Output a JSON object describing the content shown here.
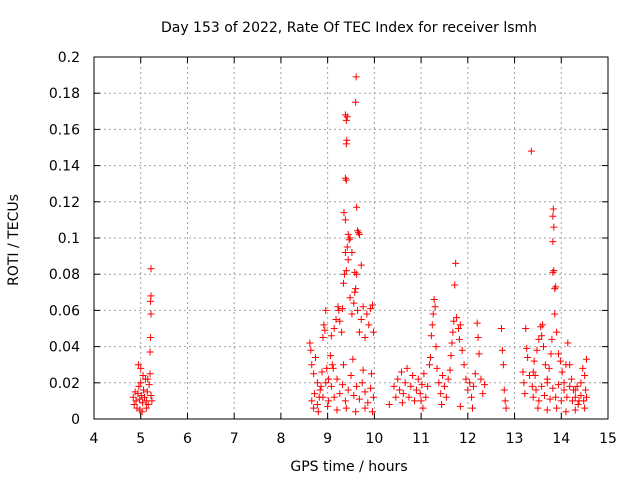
{
  "chart_data": {
    "type": "scatter",
    "title": "Day 153 of 2022, Rate Of TEC Index for receiver lsmh",
    "xlabel": "GPS time / hours",
    "ylabel": "ROTI / TECUs",
    "xlim": [
      4,
      15
    ],
    "ylim": [
      0,
      0.2
    ],
    "xticks": [
      4,
      5,
      6,
      7,
      8,
      9,
      10,
      11,
      12,
      13,
      14,
      15
    ],
    "yticks": [
      0,
      0.02,
      0.04,
      0.06,
      0.08,
      0.1,
      0.12,
      0.14,
      0.16,
      0.18,
      0.2
    ],
    "xtick_labels": [
      "4",
      "5",
      "6",
      "7",
      "8",
      "9",
      "10",
      "11",
      "12",
      "13",
      "14",
      "15"
    ],
    "ytick_labels": [
      "0",
      "0.02",
      "0.04",
      "0.06",
      "0.08",
      "0.1",
      "0.12",
      "0.14",
      "0.16",
      "0.18",
      "0.2"
    ],
    "grid": true,
    "marker": "plus",
    "marker_color": "#ff0000",
    "series": [
      {
        "name": "ROTI",
        "points": [
          [
            4.84,
            0.012
          ],
          [
            4.86,
            0.008
          ],
          [
            4.88,
            0.015
          ],
          [
            4.9,
            0.01
          ],
          [
            4.92,
            0.006
          ],
          [
            4.94,
            0.014
          ],
          [
            4.96,
            0.018
          ],
          [
            4.98,
            0.011
          ],
          [
            5.0,
            0.02
          ],
          [
            5.02,
            0.013
          ],
          [
            5.04,
            0.009
          ],
          [
            5.06,
            0.016
          ],
          [
            5.08,
            0.012
          ],
          [
            5.1,
            0.022
          ],
          [
            5.12,
            0.01
          ],
          [
            5.14,
            0.015
          ],
          [
            5.16,
            0.008
          ],
          [
            5.18,
            0.019
          ],
          [
            5.2,
            0.025
          ],
          [
            5.22,
            0.013
          ],
          [
            5.24,
            0.01
          ],
          [
            4.95,
            0.03
          ],
          [
            5.0,
            0.028
          ],
          [
            5.05,
            0.024
          ],
          [
            5.15,
            0.022
          ],
          [
            5.21,
            0.045
          ],
          [
            5.22,
            0.058
          ],
          [
            5.21,
            0.065
          ],
          [
            5.22,
            0.068
          ],
          [
            5.2,
            0.037
          ],
          [
            5.22,
            0.083
          ],
          [
            4.98,
            0.005
          ],
          [
            5.03,
            0.004
          ],
          [
            5.12,
            0.006
          ],
          [
            8.62,
            0.042
          ],
          [
            8.64,
            0.038
          ],
          [
            8.66,
            0.03
          ],
          [
            8.7,
            0.025
          ],
          [
            8.74,
            0.034
          ],
          [
            8.78,
            0.02
          ],
          [
            8.82,
            0.012
          ],
          [
            8.86,
            0.018
          ],
          [
            8.9,
            0.045
          ],
          [
            8.92,
            0.052
          ],
          [
            8.94,
            0.049
          ],
          [
            8.96,
            0.06
          ],
          [
            8.98,
            0.028
          ],
          [
            9.02,
            0.022
          ],
          [
            9.06,
            0.035
          ],
          [
            9.08,
            0.046
          ],
          [
            9.1,
            0.03
          ],
          [
            9.14,
            0.05
          ],
          [
            9.18,
            0.055
          ],
          [
            9.22,
            0.062
          ],
          [
            9.24,
            0.06
          ],
          [
            9.26,
            0.054
          ],
          [
            9.3,
            0.048
          ],
          [
            9.32,
            0.061
          ],
          [
            9.34,
            0.075
          ],
          [
            9.36,
            0.08
          ],
          [
            9.38,
            0.092
          ],
          [
            9.4,
            0.082
          ],
          [
            9.42,
            0.095
          ],
          [
            9.44,
            0.088
          ],
          [
            9.46,
            0.099
          ],
          [
            9.48,
            0.067
          ],
          [
            9.52,
            0.058
          ],
          [
            9.56,
            0.064
          ],
          [
            9.58,
            0.07
          ],
          [
            9.6,
            0.072
          ],
          [
            9.62,
            0.08
          ],
          [
            9.64,
            0.06
          ],
          [
            9.68,
            0.048
          ],
          [
            9.72,
            0.055
          ],
          [
            9.76,
            0.062
          ],
          [
            9.8,
            0.045
          ],
          [
            9.84,
            0.058
          ],
          [
            9.88,
            0.052
          ],
          [
            9.92,
            0.061
          ],
          [
            9.96,
            0.063
          ],
          [
            9.98,
            0.048
          ],
          [
            9.35,
            0.114
          ],
          [
            9.38,
            0.11
          ],
          [
            9.4,
            0.132
          ],
          [
            9.38,
            0.133
          ],
          [
            9.4,
            0.152
          ],
          [
            9.41,
            0.154
          ],
          [
            9.4,
            0.165
          ],
          [
            9.42,
            0.167
          ],
          [
            9.38,
            0.168
          ],
          [
            9.62,
            0.117
          ],
          [
            9.64,
            0.104
          ],
          [
            9.68,
            0.102
          ],
          [
            9.66,
            0.103
          ],
          [
            9.6,
            0.175
          ],
          [
            9.61,
            0.189
          ],
          [
            9.48,
            0.1
          ],
          [
            9.52,
            0.092
          ],
          [
            9.44,
            0.102
          ],
          [
            9.72,
            0.085
          ],
          [
            9.58,
            0.081
          ],
          [
            8.66,
            0.01
          ],
          [
            8.72,
            0.014
          ],
          [
            8.78,
            0.008
          ],
          [
            8.84,
            0.016
          ],
          [
            8.9,
            0.012
          ],
          [
            8.96,
            0.02
          ],
          [
            9.02,
            0.01
          ],
          [
            9.08,
            0.018
          ],
          [
            9.14,
            0.012
          ],
          [
            9.2,
            0.022
          ],
          [
            9.26,
            0.014
          ],
          [
            9.32,
            0.019
          ],
          [
            9.38,
            0.01
          ],
          [
            9.44,
            0.016
          ],
          [
            9.5,
            0.024
          ],
          [
            9.56,
            0.013
          ],
          [
            9.62,
            0.018
          ],
          [
            9.68,
            0.011
          ],
          [
            9.74,
            0.02
          ],
          [
            9.8,
            0.015
          ],
          [
            9.86,
            0.009
          ],
          [
            9.92,
            0.017
          ],
          [
            9.98,
            0.012
          ],
          [
            8.7,
            0.006
          ],
          [
            8.8,
            0.004
          ],
          [
            9.0,
            0.007
          ],
          [
            9.2,
            0.005
          ],
          [
            9.4,
            0.006
          ],
          [
            9.6,
            0.004
          ],
          [
            9.8,
            0.006
          ],
          [
            9.96,
            0.004
          ],
          [
            8.88,
            0.026
          ],
          [
            9.12,
            0.028
          ],
          [
            9.34,
            0.03
          ],
          [
            9.54,
            0.033
          ],
          [
            9.76,
            0.027
          ],
          [
            9.94,
            0.025
          ],
          [
            10.32,
            0.008
          ],
          [
            10.42,
            0.018
          ],
          [
            10.46,
            0.012
          ],
          [
            10.5,
            0.022
          ],
          [
            10.54,
            0.016
          ],
          [
            10.58,
            0.026
          ],
          [
            10.62,
            0.014
          ],
          [
            10.66,
            0.02
          ],
          [
            10.7,
            0.028
          ],
          [
            10.74,
            0.012
          ],
          [
            10.78,
            0.018
          ],
          [
            10.82,
            0.024
          ],
          [
            10.86,
            0.01
          ],
          [
            10.9,
            0.016
          ],
          [
            10.94,
            0.022
          ],
          [
            10.98,
            0.014
          ],
          [
            11.02,
            0.019
          ],
          [
            11.06,
            0.025
          ],
          [
            11.1,
            0.012
          ],
          [
            11.14,
            0.018
          ],
          [
            11.18,
            0.03
          ],
          [
            11.2,
            0.034
          ],
          [
            11.22,
            0.046
          ],
          [
            11.24,
            0.052
          ],
          [
            11.26,
            0.058
          ],
          [
            11.28,
            0.066
          ],
          [
            11.3,
            0.062
          ],
          [
            11.32,
            0.04
          ],
          [
            11.34,
            0.028
          ],
          [
            11.38,
            0.02
          ],
          [
            11.42,
            0.014
          ],
          [
            11.46,
            0.024
          ],
          [
            11.5,
            0.018
          ],
          [
            11.54,
            0.012
          ],
          [
            11.58,
            0.022
          ],
          [
            11.62,
            0.027
          ],
          [
            11.64,
            0.035
          ],
          [
            11.66,
            0.042
          ],
          [
            11.68,
            0.048
          ],
          [
            11.7,
            0.054
          ],
          [
            11.72,
            0.074
          ],
          [
            11.74,
            0.086
          ],
          [
            11.76,
            0.056
          ],
          [
            11.8,
            0.05
          ],
          [
            11.82,
            0.044
          ],
          [
            11.84,
            0.052
          ],
          [
            11.88,
            0.038
          ],
          [
            11.92,
            0.03
          ],
          [
            11.96,
            0.022
          ],
          [
            12.0,
            0.016
          ],
          [
            12.04,
            0.02
          ],
          [
            12.08,
            0.012
          ],
          [
            12.12,
            0.018
          ],
          [
            12.16,
            0.025
          ],
          [
            12.2,
            0.053
          ],
          [
            12.22,
            0.045
          ],
          [
            12.24,
            0.036
          ],
          [
            12.28,
            0.022
          ],
          [
            12.32,
            0.014
          ],
          [
            12.36,
            0.019
          ],
          [
            11.04,
            0.006
          ],
          [
            11.44,
            0.008
          ],
          [
            11.84,
            0.007
          ],
          [
            12.1,
            0.006
          ],
          [
            10.6,
            0.009
          ],
          [
            11.0,
            0.01
          ],
          [
            12.72,
            0.05
          ],
          [
            12.74,
            0.038
          ],
          [
            12.76,
            0.03
          ],
          [
            12.78,
            0.016
          ],
          [
            12.8,
            0.01
          ],
          [
            12.82,
            0.006
          ],
          [
            13.18,
            0.026
          ],
          [
            13.2,
            0.02
          ],
          [
            13.22,
            0.014
          ],
          [
            13.24,
            0.05
          ],
          [
            13.26,
            0.039
          ],
          [
            13.28,
            0.034
          ],
          [
            13.32,
            0.024
          ],
          [
            13.36,
            0.148
          ],
          [
            13.38,
            0.018
          ],
          [
            13.4,
            0.026
          ],
          [
            13.42,
            0.032
          ],
          [
            13.44,
            0.024
          ],
          [
            13.48,
            0.038
          ],
          [
            13.52,
            0.044
          ],
          [
            13.56,
            0.051
          ],
          [
            13.58,
            0.046
          ],
          [
            13.6,
            0.052
          ],
          [
            13.62,
            0.04
          ],
          [
            13.66,
            0.03
          ],
          [
            13.7,
            0.022
          ],
          [
            13.74,
            0.028
          ],
          [
            13.78,
            0.036
          ],
          [
            13.8,
            0.044
          ],
          [
            13.82,
            0.081
          ],
          [
            13.84,
            0.082
          ],
          [
            13.82,
            0.098
          ],
          [
            13.84,
            0.106
          ],
          [
            13.82,
            0.112
          ],
          [
            13.83,
            0.116
          ],
          [
            13.86,
            0.072
          ],
          [
            13.88,
            0.073
          ],
          [
            13.86,
            0.058
          ],
          [
            13.9,
            0.048
          ],
          [
            13.94,
            0.036
          ],
          [
            13.98,
            0.032
          ],
          [
            14.02,
            0.026
          ],
          [
            14.06,
            0.02
          ],
          [
            14.1,
            0.03
          ],
          [
            14.14,
            0.042
          ],
          [
            14.18,
            0.03
          ],
          [
            14.22,
            0.022
          ],
          [
            14.26,
            0.016
          ],
          [
            14.3,
            0.012
          ],
          [
            14.34,
            0.018
          ],
          [
            14.38,
            0.01
          ],
          [
            14.42,
            0.02
          ],
          [
            14.46,
            0.028
          ],
          [
            14.5,
            0.024
          ],
          [
            14.52,
            0.016
          ],
          [
            14.54,
            0.033
          ],
          [
            13.4,
            0.012
          ],
          [
            13.46,
            0.016
          ],
          [
            13.52,
            0.01
          ],
          [
            13.58,
            0.018
          ],
          [
            13.64,
            0.013
          ],
          [
            13.7,
            0.02
          ],
          [
            13.76,
            0.011
          ],
          [
            13.82,
            0.017
          ],
          [
            13.88,
            0.012
          ],
          [
            13.94,
            0.019
          ],
          [
            14.0,
            0.01
          ],
          [
            14.06,
            0.016
          ],
          [
            14.12,
            0.012
          ],
          [
            14.18,
            0.018
          ],
          [
            14.24,
            0.01
          ],
          [
            14.3,
            0.016
          ],
          [
            14.36,
            0.008
          ],
          [
            14.42,
            0.013
          ],
          [
            14.48,
            0.01
          ],
          [
            14.54,
            0.012
          ],
          [
            13.5,
            0.006
          ],
          [
            13.7,
            0.005
          ],
          [
            13.9,
            0.006
          ],
          [
            14.1,
            0.004
          ],
          [
            14.3,
            0.005
          ],
          [
            14.5,
            0.006
          ]
        ]
      }
    ]
  }
}
